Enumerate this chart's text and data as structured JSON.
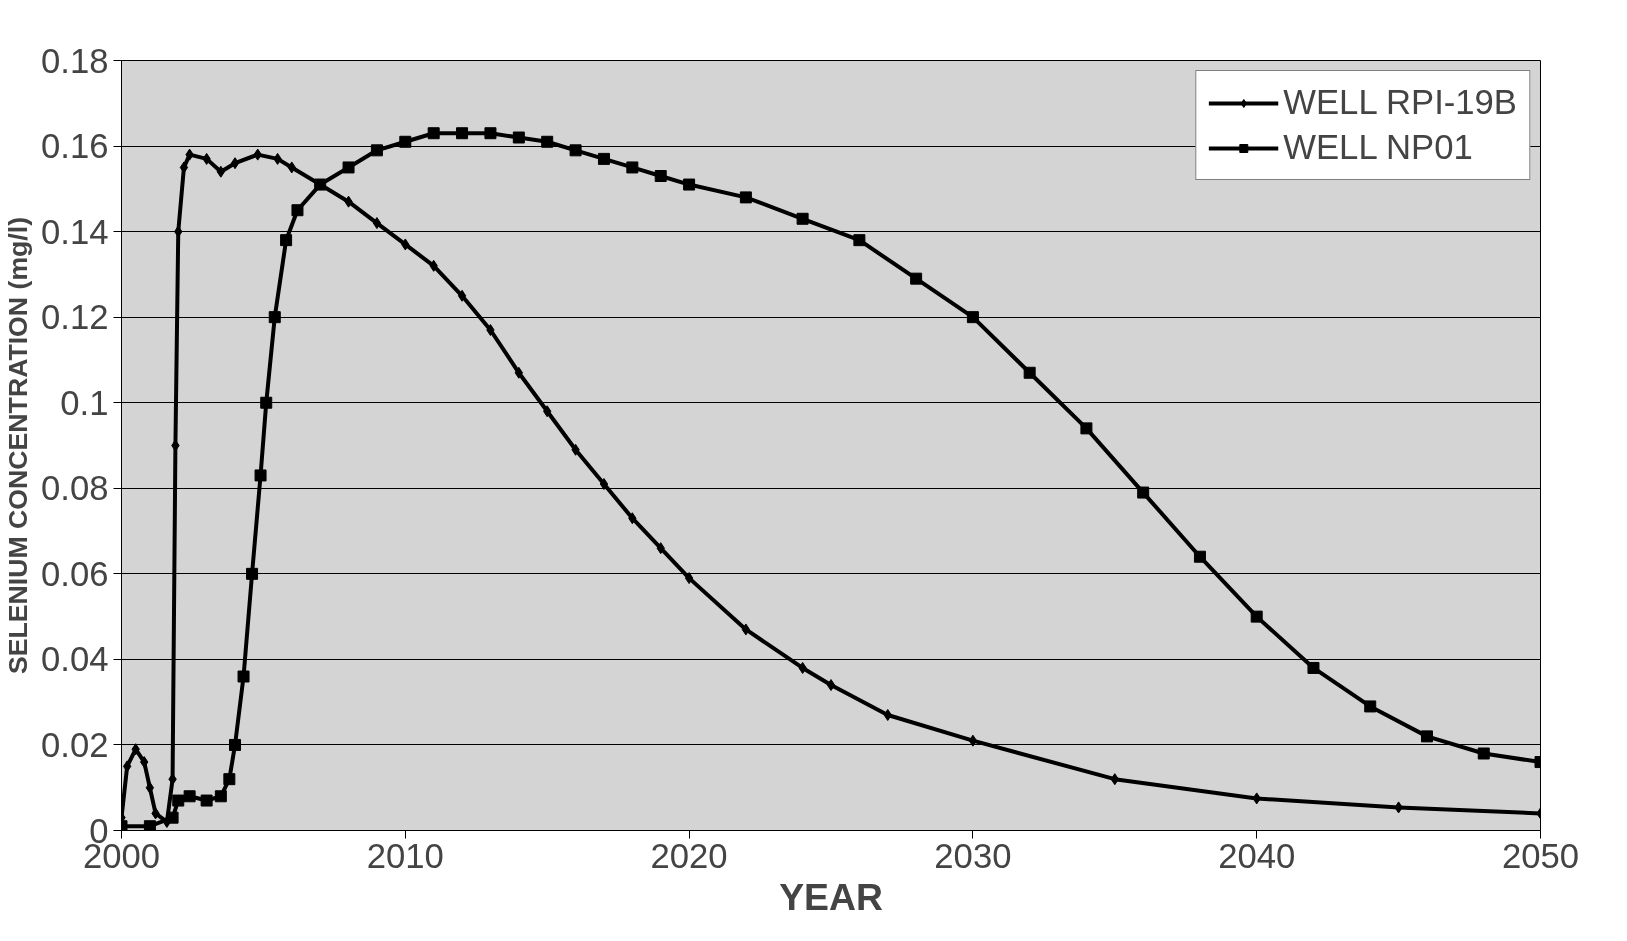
{
  "chart_data": {
    "type": "line",
    "xlabel": "YEAR",
    "ylabel": "SELENIUM CONCENTRATION (mg/l)",
    "xlim": [
      2000,
      2050
    ],
    "xticks": [
      2000,
      2010,
      2020,
      2030,
      2040,
      2050
    ],
    "ylim": [
      0,
      0.18
    ],
    "yticks": [
      0,
      0.02,
      0.04,
      0.06,
      0.08,
      0.1,
      0.12,
      0.14,
      0.16,
      0.18
    ],
    "grid": "y",
    "legend": "top right",
    "line_style": "solid",
    "series": [
      {
        "name": "WELL RPI-19B",
        "color": "#000000",
        "marker": "diamond",
        "x": [
          2000,
          2000.2,
          2000.5,
          2000.8,
          2001,
          2001.2,
          2001.6,
          2001.8,
          2001.9,
          2002,
          2002.2,
          2002.4,
          2003,
          2003.5,
          2004,
          2004.8,
          2005.5,
          2006,
          2007,
          2008,
          2009,
          2010,
          2011,
          2012,
          2013,
          2014,
          2015,
          2016,
          2017,
          2018,
          2019,
          2020,
          2022,
          2024,
          2025,
          2027,
          2030,
          2035,
          2040,
          2045,
          2050
        ],
        "values": [
          0.003,
          0.015,
          0.019,
          0.016,
          0.01,
          0.004,
          0.002,
          0.012,
          0.09,
          0.14,
          0.155,
          0.158,
          0.157,
          0.154,
          0.156,
          0.158,
          0.157,
          0.155,
          0.151,
          0.147,
          0.142,
          0.137,
          0.132,
          0.125,
          0.117,
          0.107,
          0.098,
          0.089,
          0.081,
          0.073,
          0.066,
          0.059,
          0.047,
          0.038,
          0.034,
          0.027,
          0.021,
          0.012,
          0.0075,
          0.0054,
          0.004
        ]
      },
      {
        "name": "WELL NP01",
        "color": "#000000",
        "marker": "square",
        "x": [
          2000,
          2001,
          2001.8,
          2002,
          2002.4,
          2003,
          2003.5,
          2003.8,
          2004,
          2004.3,
          2004.6,
          2004.9,
          2005.1,
          2005.4,
          2005.8,
          2006.2,
          2007,
          2008,
          2009,
          2010,
          2011,
          2012,
          2013,
          2014,
          2015,
          2016,
          2017,
          2018,
          2019,
          2020,
          2022,
          2024,
          2026,
          2028,
          2030,
          2032,
          2034,
          2036,
          2038,
          2040,
          2042,
          2044,
          2046,
          2048,
          2050
        ],
        "values": [
          0.001,
          0.001,
          0.003,
          0.007,
          0.008,
          0.007,
          0.008,
          0.012,
          0.02,
          0.036,
          0.06,
          0.083,
          0.1,
          0.12,
          0.138,
          0.145,
          0.151,
          0.155,
          0.159,
          0.161,
          0.163,
          0.163,
          0.163,
          0.162,
          0.161,
          0.159,
          0.157,
          0.155,
          0.153,
          0.151,
          0.148,
          0.143,
          0.138,
          0.129,
          0.12,
          0.107,
          0.094,
          0.079,
          0.064,
          0.05,
          0.038,
          0.029,
          0.022,
          0.018,
          0.016
        ]
      }
    ]
  }
}
